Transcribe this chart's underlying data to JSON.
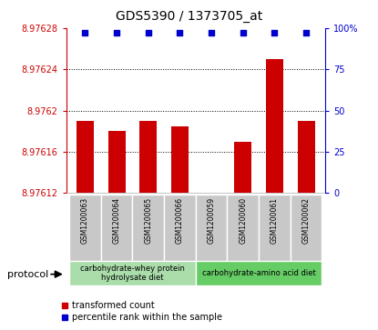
{
  "title": "GDS5390 / 1373705_at",
  "samples": [
    "GSM1200063",
    "GSM1200064",
    "GSM1200065",
    "GSM1200066",
    "GSM1200059",
    "GSM1200060",
    "GSM1200061",
    "GSM1200062"
  ],
  "bar_values": [
    8.97619,
    8.97618,
    8.97619,
    8.976185,
    8.97612,
    8.97617,
    8.97625,
    8.97619
  ],
  "percentile_values": [
    97,
    97,
    97,
    97,
    97,
    97,
    97,
    97
  ],
  "ylim_left": [
    8.97612,
    8.97628
  ],
  "ylim_right": [
    0,
    100
  ],
  "yticks_left": [
    8.97612,
    8.97616,
    8.9762,
    8.97624,
    8.97628
  ],
  "ytick_labels_left": [
    "8.97612",
    "8.97616",
    "8.9762",
    "8.97624",
    "8.97628"
  ],
  "yticks_right": [
    0,
    25,
    50,
    75,
    100
  ],
  "ytick_labels_right": [
    "0",
    "25",
    "50",
    "75",
    "100%"
  ],
  "bar_color": "#cc0000",
  "percentile_color": "#0000cc",
  "protocol_groups": [
    {
      "label": "carbohydrate-whey protein\nhydrolysate diet",
      "indices": [
        0,
        1,
        2,
        3
      ],
      "color": "#aaddaa"
    },
    {
      "label": "carbohydrate-amino acid diet",
      "indices": [
        4,
        5,
        6,
        7
      ],
      "color": "#66cc66"
    }
  ],
  "protocol_label": "protocol",
  "left_color": "#cc0000",
  "right_color": "#0000cc",
  "bar_width": 0.55,
  "legend_red_label": "transformed count",
  "legend_blue_label": "percentile rank within the sample",
  "sample_box_color": "#c8c8c8",
  "grid_linestyle": "dotted"
}
